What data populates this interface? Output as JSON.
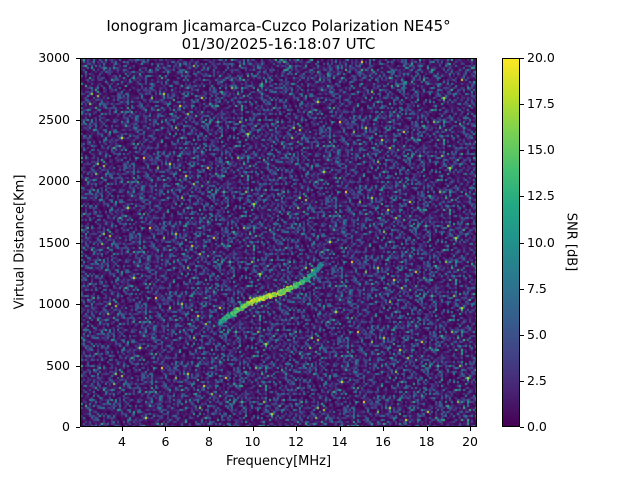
{
  "chart_data": {
    "type": "heatmap",
    "title": "Ionogram Jicamarca-Cuzco Polarization NE45°",
    "subtitle": "01/30/2025-16:18:07 UTC",
    "xlabel": "Frequency[MHz]",
    "ylabel": "Virtual Distance[Km]",
    "xlim": [
      2.07,
      20.32
    ],
    "ylim": [
      0,
      3000
    ],
    "x_ticks": [
      4,
      6,
      8,
      10,
      12,
      14,
      16,
      18,
      20
    ],
    "y_ticks": [
      0,
      500,
      1000,
      1500,
      2000,
      2500,
      3000
    ],
    "colorbar": {
      "label": "SNR [dB]",
      "colormap": "viridis",
      "range": [
        0.0,
        20.0
      ],
      "ticks": [
        "0.0",
        "2.5",
        "5.0",
        "7.5",
        "10.0",
        "12.5",
        "15.0",
        "17.5",
        "20.0"
      ]
    },
    "background": "noise, mostly 0-5 dB with scattered 5-12 dB speckle",
    "trace": {
      "name": "oblique echo trace",
      "points": [
        {
          "freq": 8.4,
          "dist": 855
        },
        {
          "freq": 8.8,
          "dist": 920
        },
        {
          "freq": 9.3,
          "dist": 975
        },
        {
          "freq": 9.8,
          "dist": 1025
        },
        {
          "freq": 10.3,
          "dist": 1060
        },
        {
          "freq": 10.8,
          "dist": 1085
        },
        {
          "freq": 11.3,
          "dist": 1115
        },
        {
          "freq": 11.9,
          "dist": 1165
        },
        {
          "freq": 12.4,
          "dist": 1220
        },
        {
          "freq": 12.8,
          "dist": 1285
        },
        {
          "freq": 13.1,
          "dist": 1340
        }
      ],
      "peak_snr": [
        12,
        15,
        17,
        19,
        20,
        20,
        19,
        17,
        15,
        12,
        10
      ]
    }
  },
  "labels": {
    "title": "Ionogram Jicamarca-Cuzco Polarization NE45°",
    "subtitle": "01/30/2025-16:18:07 UTC",
    "xlabel": "Frequency[MHz]",
    "ylabel": "Virtual Distance[Km]",
    "clabel": "SNR [dB]"
  }
}
